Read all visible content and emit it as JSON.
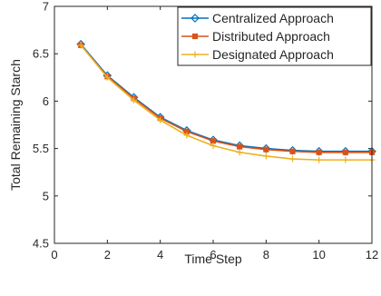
{
  "chart_data": {
    "type": "line",
    "title": "",
    "xlabel": "Time Step",
    "ylabel": "Total Remaining Starch",
    "xlim": [
      0,
      12
    ],
    "ylim": [
      4.5,
      7
    ],
    "xticks": [
      0,
      2,
      4,
      6,
      8,
      10,
      12
    ],
    "yticks": [
      4.5,
      5,
      5.5,
      6,
      6.5,
      7
    ],
    "xtick_labels": [
      "0",
      "2",
      "4",
      "6",
      "8",
      "10",
      "12"
    ],
    "ytick_labels": [
      "4.5",
      "5",
      "5.5",
      "6",
      "6.5",
      "7"
    ],
    "grid": false,
    "legend_position": "top-right",
    "x": [
      1,
      2,
      3,
      4,
      5,
      6,
      7,
      8,
      9,
      10,
      11,
      12
    ],
    "series": [
      {
        "name": "Centralized Approach",
        "color": "#0072bd",
        "marker": "diamond",
        "values": [
          6.6,
          6.27,
          6.04,
          5.83,
          5.69,
          5.59,
          5.53,
          5.5,
          5.48,
          5.47,
          5.47,
          5.47
        ]
      },
      {
        "name": "Distributed Approach",
        "color": "#d95319",
        "marker": "square",
        "values": [
          6.59,
          6.26,
          6.03,
          5.82,
          5.68,
          5.58,
          5.52,
          5.49,
          5.47,
          5.46,
          5.46,
          5.46
        ]
      },
      {
        "name": "Designated Approach",
        "color": "#edb120",
        "marker": "plus",
        "values": [
          6.59,
          6.25,
          6.01,
          5.8,
          5.64,
          5.53,
          5.46,
          5.42,
          5.39,
          5.38,
          5.38,
          5.38
        ]
      }
    ]
  }
}
